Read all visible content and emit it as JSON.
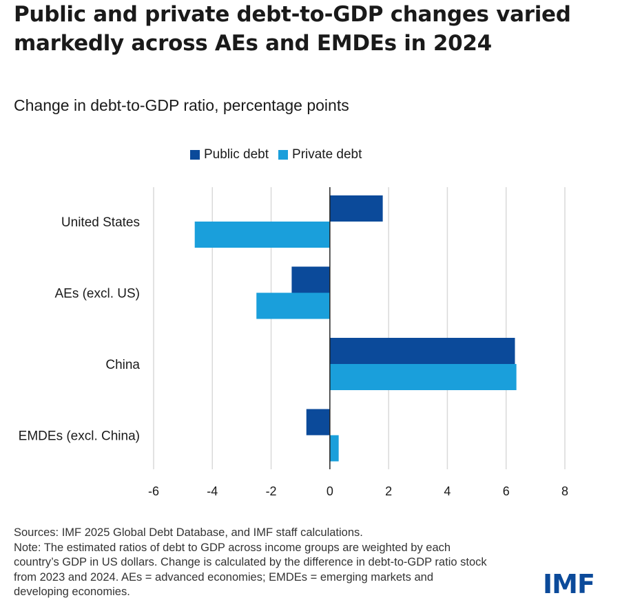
{
  "title": "Public and private debt-to-GDP changes varied markedly across AEs and EMDEs in 2024",
  "subtitle": "Change in debt-to-GDP ratio, percentage points",
  "colors": {
    "public": "#0b4a9a",
    "private": "#1a9fdb",
    "grid": "#d9d9d9",
    "axis": "#222222"
  },
  "chart_data": {
    "type": "bar",
    "orientation": "horizontal",
    "categories": [
      "United States",
      "AEs (excl. US)",
      "China",
      "EMDEs (excl. China)"
    ],
    "series": [
      {
        "name": "Public debt",
        "color": "#0b4a9a",
        "values": [
          1.8,
          -1.3,
          6.3,
          -0.8
        ]
      },
      {
        "name": "Private debt",
        "color": "#1a9fdb",
        "values": [
          -4.6,
          -2.5,
          6.35,
          0.3
        ]
      }
    ],
    "xlim": [
      -6,
      8
    ],
    "xticks": [
      -6,
      -4,
      -2,
      0,
      2,
      4,
      6,
      8
    ],
    "legend_position": "top",
    "grid": true
  },
  "legend": {
    "public_label": "Public debt",
    "private_label": "Private debt"
  },
  "footer": {
    "sources": "Sources: IMF 2025 Global Debt Database, and IMF staff calculations.",
    "note": "Note: The estimated ratios of debt to GDP across income groups are weighted by each country’s GDP in US dollars. Change is calculated by the difference in debt-to-GDP ratio stock from 2023 and 2024. AEs = advanced economies; EMDEs = emerging markets and developing economies."
  },
  "logo": "IMF"
}
